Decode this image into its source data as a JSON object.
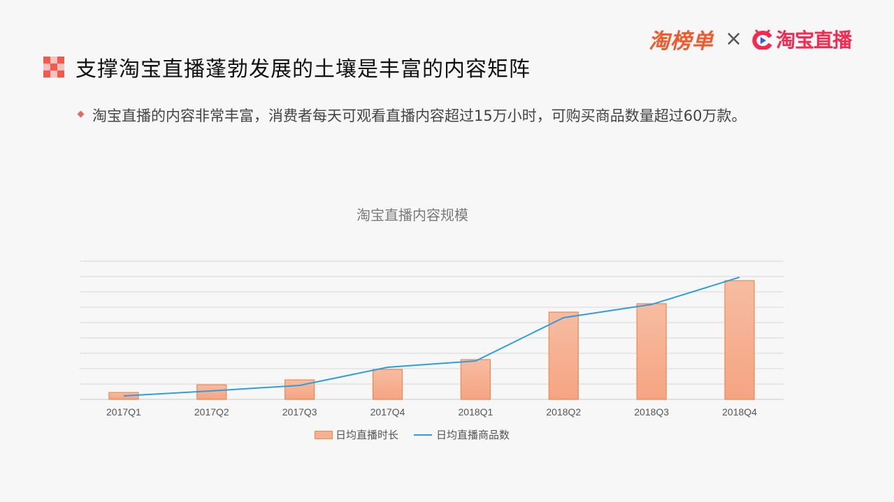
{
  "header": {
    "brand_left": "淘榜单",
    "separator": "×",
    "brand_right": "淘宝直播",
    "brand_left_color": "#f15a2b",
    "brand_right_color": "#f5294f"
  },
  "slide": {
    "title": "支撑淘宝直播蓬勃发展的土壤是丰富的内容矩阵",
    "bullet": "淘宝直播的内容非常丰富，消费者每天可观看直播内容超过15万小时，可购买商品数量超过60万款。",
    "accent_color": "#f25a4e"
  },
  "chart_data": {
    "type": "bar+line",
    "title": "淘宝直播内容规模",
    "categories": [
      "2017Q1",
      "2017Q2",
      "2017Q3",
      "2017Q4",
      "2018Q1",
      "2018Q2",
      "2018Q3",
      "2018Q4"
    ],
    "series": [
      {
        "name": "日均直播时长",
        "type": "bar",
        "color": "#f6b08f",
        "values": [
          0.45,
          0.95,
          1.27,
          1.95,
          2.59,
          5.68,
          6.23,
          7.73
        ]
      },
      {
        "name": "日均直播商品数",
        "type": "line",
        "color": "#2a9fe0",
        "values": [
          0.23,
          0.55,
          0.91,
          2.09,
          2.5,
          5.32,
          6.18,
          7.95
        ]
      }
    ],
    "xlabel": "",
    "ylabel": "",
    "ylim": [
      0,
      9
    ],
    "y_axis_labels_shown": false,
    "grid": true,
    "legend_position": "bottom"
  }
}
